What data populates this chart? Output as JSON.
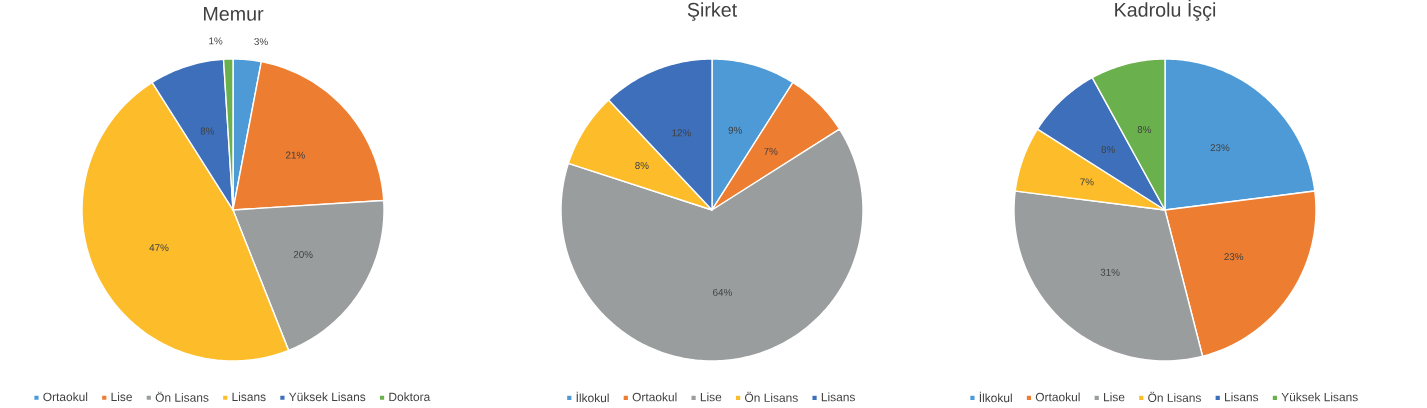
{
  "chart_data": [
    {
      "type": "pie",
      "title": "Memur",
      "categories": [
        "Ortaokul",
        "Lise",
        "Ön Lisans",
        "Lisans",
        "Yüksek Lisans",
        "Doktora"
      ],
      "values": [
        3,
        21,
        20,
        47,
        8,
        1
      ],
      "value_labels": [
        "3%",
        "21%",
        "20%",
        "47%",
        "8%",
        "1%"
      ],
      "colors": [
        "#4e9ad6",
        "#ed7d31",
        "#9a9d9e",
        "#fdbd2a",
        "#3d6fba",
        "#6ab04c"
      ],
      "legend": "bottom"
    },
    {
      "type": "pie",
      "title": "Şirket",
      "categories": [
        "İlkokul",
        "Ortaokul",
        "Lise",
        "Ön Lisans",
        "Lisans"
      ],
      "values": [
        9,
        7,
        64,
        8,
        12
      ],
      "value_labels": [
        "9%",
        "7%",
        "64%",
        "8%",
        "12%"
      ],
      "colors": [
        "#4e9ad6",
        "#ed7d31",
        "#9a9d9e",
        "#fdbd2a",
        "#3d6fba"
      ],
      "legend": "bottom"
    },
    {
      "type": "pie",
      "title": "Kadrolu İşçi",
      "categories": [
        "İlkokul",
        "Ortaokul",
        "Lise",
        "Ön Lisans",
        "Lisans",
        "Yüksek Lisans"
      ],
      "values": [
        23,
        23,
        31,
        7,
        8,
        8
      ],
      "value_labels": [
        "23%",
        "23%",
        "31%",
        "7%",
        "8%",
        "8%"
      ],
      "colors": [
        "#4e9ad6",
        "#ed7d31",
        "#9a9d9e",
        "#fdbd2a",
        "#3d6fba",
        "#6ab04c"
      ],
      "legend": "bottom"
    }
  ]
}
